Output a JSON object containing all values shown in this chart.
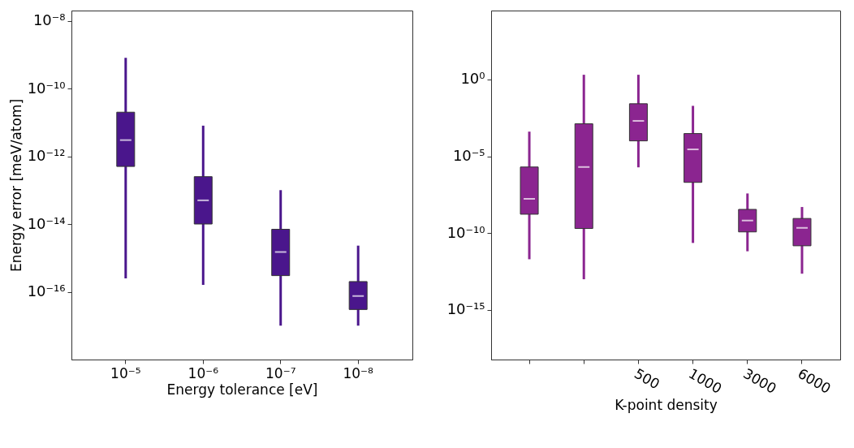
{
  "chart_data": [
    {
      "type": "box",
      "xlabel": "Energy tolerance [eV]",
      "ylabel": "Energy error [meV/atom]",
      "log": true,
      "categories": [
        "10⁻⁵",
        "10⁻⁶",
        "10⁻⁷",
        "10⁻⁸"
      ],
      "ylim": [
        1e-18,
        2e-08
      ],
      "yticks": [
        {
          "value": 1e-16,
          "label": "10⁻¹⁶"
        },
        {
          "value": 1e-14,
          "label": "10⁻¹⁴"
        },
        {
          "value": 1e-12,
          "label": "10⁻¹²"
        },
        {
          "value": 1e-10,
          "label": "10⁻¹⁰"
        },
        {
          "value": 1e-08,
          "label": "10⁻⁸"
        }
      ],
      "series": [
        {
          "color": "#4a168c",
          "boxes": [
            {
              "low": 2.5e-16,
              "q1": 5e-13,
              "median": 3e-12,
              "q3": 2e-11,
              "high": 8e-10
            },
            {
              "low": 1.6e-16,
              "q1": 1e-14,
              "median": 5e-14,
              "q3": 2.5e-13,
              "high": 8e-12
            },
            {
              "low": 1e-17,
              "q1": 3e-16,
              "median": 1.5e-15,
              "q3": 7e-15,
              "high": 1e-13
            },
            {
              "low": 1e-17,
              "q1": 3e-17,
              "median": 7.5e-17,
              "q3": 2e-16,
              "high": 2.3e-15
            }
          ]
        }
      ]
    },
    {
      "type": "box",
      "xlabel": "K-point density",
      "log": true,
      "categories": [
        null,
        null,
        "500",
        "1000",
        "3000",
        "6000"
      ],
      "ylim": [
        6e-19,
        30000.0
      ],
      "yticks": [
        {
          "value": 1e-15,
          "label": "10⁻¹⁵"
        },
        {
          "value": 1e-10,
          "label": "10⁻¹⁰"
        },
        {
          "value": 1e-05,
          "label": "10⁻⁵"
        },
        {
          "value": 1,
          "label": "10⁰"
        }
      ],
      "series": [
        {
          "color": "#8b2590",
          "boxes": [
            {
              "low": 2e-12,
              "q1": 1.7e-09,
              "median": 1.7e-08,
              "q3": 2e-06,
              "high": 0.0004
            },
            {
              "low": 1e-13,
              "q1": 2e-10,
              "median": 2e-06,
              "q3": 0.0013,
              "high": 2
            },
            {
              "low": 1.9e-06,
              "q1": 0.0001,
              "median": 0.002,
              "q3": 0.026,
              "high": 2
            },
            {
              "low": 2.3e-11,
              "q1": 2e-07,
              "median": 2.8e-05,
              "q3": 0.0003,
              "high": 0.019
            },
            {
              "low": 6.6e-12,
              "q1": 1.2e-10,
              "median": 6.6e-10,
              "q3": 3.5e-09,
              "high": 3.8e-08
            },
            {
              "low": 2.3e-13,
              "q1": 1.5e-11,
              "median": 2.2e-10,
              "q3": 9e-10,
              "high": 5e-09
            }
          ]
        }
      ]
    }
  ]
}
